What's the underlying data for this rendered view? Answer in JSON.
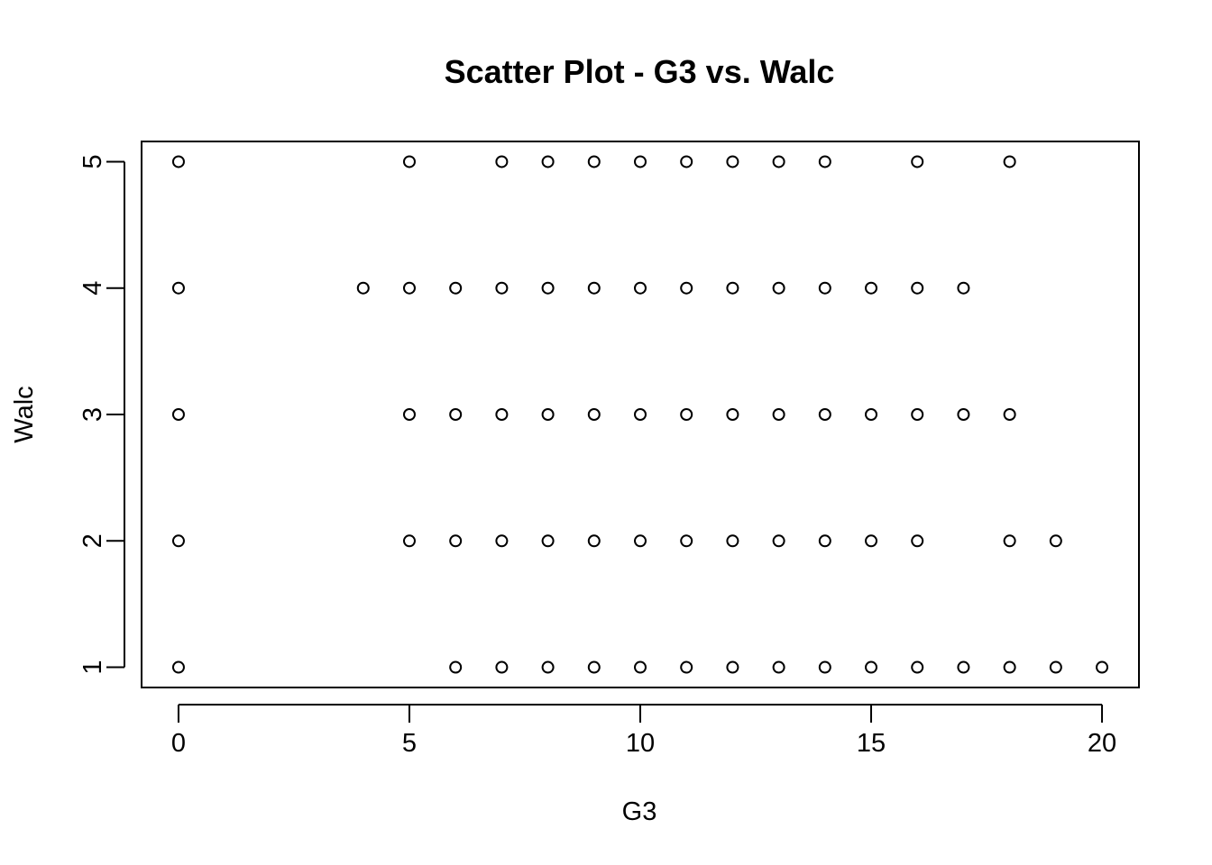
{
  "chart_data": {
    "type": "scatter",
    "title": "Scatter Plot - G3 vs. Walc",
    "xlabel": "G3",
    "ylabel": "Walc",
    "xlim": [
      -0.8,
      20.8
    ],
    "ylim": [
      0.84,
      5.16
    ],
    "x_ticks": [
      0,
      5,
      10,
      15,
      20
    ],
    "y_ticks": [
      1,
      2,
      3,
      4,
      5
    ],
    "grid": false,
    "marker": "open-circle",
    "colors": {
      "point": "#000000",
      "axis": "#000000"
    },
    "points": [
      {
        "x": 0,
        "y": 5
      },
      {
        "x": 5,
        "y": 5
      },
      {
        "x": 7,
        "y": 5
      },
      {
        "x": 8,
        "y": 5
      },
      {
        "x": 9,
        "y": 5
      },
      {
        "x": 10,
        "y": 5
      },
      {
        "x": 11,
        "y": 5
      },
      {
        "x": 12,
        "y": 5
      },
      {
        "x": 13,
        "y": 5
      },
      {
        "x": 14,
        "y": 5
      },
      {
        "x": 16,
        "y": 5
      },
      {
        "x": 18,
        "y": 5
      },
      {
        "x": 0,
        "y": 4
      },
      {
        "x": 4,
        "y": 4
      },
      {
        "x": 5,
        "y": 4
      },
      {
        "x": 6,
        "y": 4
      },
      {
        "x": 7,
        "y": 4
      },
      {
        "x": 8,
        "y": 4
      },
      {
        "x": 9,
        "y": 4
      },
      {
        "x": 10,
        "y": 4
      },
      {
        "x": 11,
        "y": 4
      },
      {
        "x": 12,
        "y": 4
      },
      {
        "x": 13,
        "y": 4
      },
      {
        "x": 14,
        "y": 4
      },
      {
        "x": 15,
        "y": 4
      },
      {
        "x": 16,
        "y": 4
      },
      {
        "x": 17,
        "y": 4
      },
      {
        "x": 0,
        "y": 3
      },
      {
        "x": 5,
        "y": 3
      },
      {
        "x": 6,
        "y": 3
      },
      {
        "x": 7,
        "y": 3
      },
      {
        "x": 8,
        "y": 3
      },
      {
        "x": 9,
        "y": 3
      },
      {
        "x": 10,
        "y": 3
      },
      {
        "x": 11,
        "y": 3
      },
      {
        "x": 12,
        "y": 3
      },
      {
        "x": 13,
        "y": 3
      },
      {
        "x": 14,
        "y": 3
      },
      {
        "x": 15,
        "y": 3
      },
      {
        "x": 16,
        "y": 3
      },
      {
        "x": 17,
        "y": 3
      },
      {
        "x": 18,
        "y": 3
      },
      {
        "x": 0,
        "y": 2
      },
      {
        "x": 5,
        "y": 2
      },
      {
        "x": 6,
        "y": 2
      },
      {
        "x": 7,
        "y": 2
      },
      {
        "x": 8,
        "y": 2
      },
      {
        "x": 9,
        "y": 2
      },
      {
        "x": 10,
        "y": 2
      },
      {
        "x": 11,
        "y": 2
      },
      {
        "x": 12,
        "y": 2
      },
      {
        "x": 13,
        "y": 2
      },
      {
        "x": 14,
        "y": 2
      },
      {
        "x": 15,
        "y": 2
      },
      {
        "x": 16,
        "y": 2
      },
      {
        "x": 18,
        "y": 2
      },
      {
        "x": 19,
        "y": 2
      },
      {
        "x": 0,
        "y": 1
      },
      {
        "x": 6,
        "y": 1
      },
      {
        "x": 7,
        "y": 1
      },
      {
        "x": 8,
        "y": 1
      },
      {
        "x": 9,
        "y": 1
      },
      {
        "x": 10,
        "y": 1
      },
      {
        "x": 11,
        "y": 1
      },
      {
        "x": 12,
        "y": 1
      },
      {
        "x": 13,
        "y": 1
      },
      {
        "x": 14,
        "y": 1
      },
      {
        "x": 15,
        "y": 1
      },
      {
        "x": 16,
        "y": 1
      },
      {
        "x": 17,
        "y": 1
      },
      {
        "x": 18,
        "y": 1
      },
      {
        "x": 19,
        "y": 1
      },
      {
        "x": 20,
        "y": 1
      }
    ]
  }
}
